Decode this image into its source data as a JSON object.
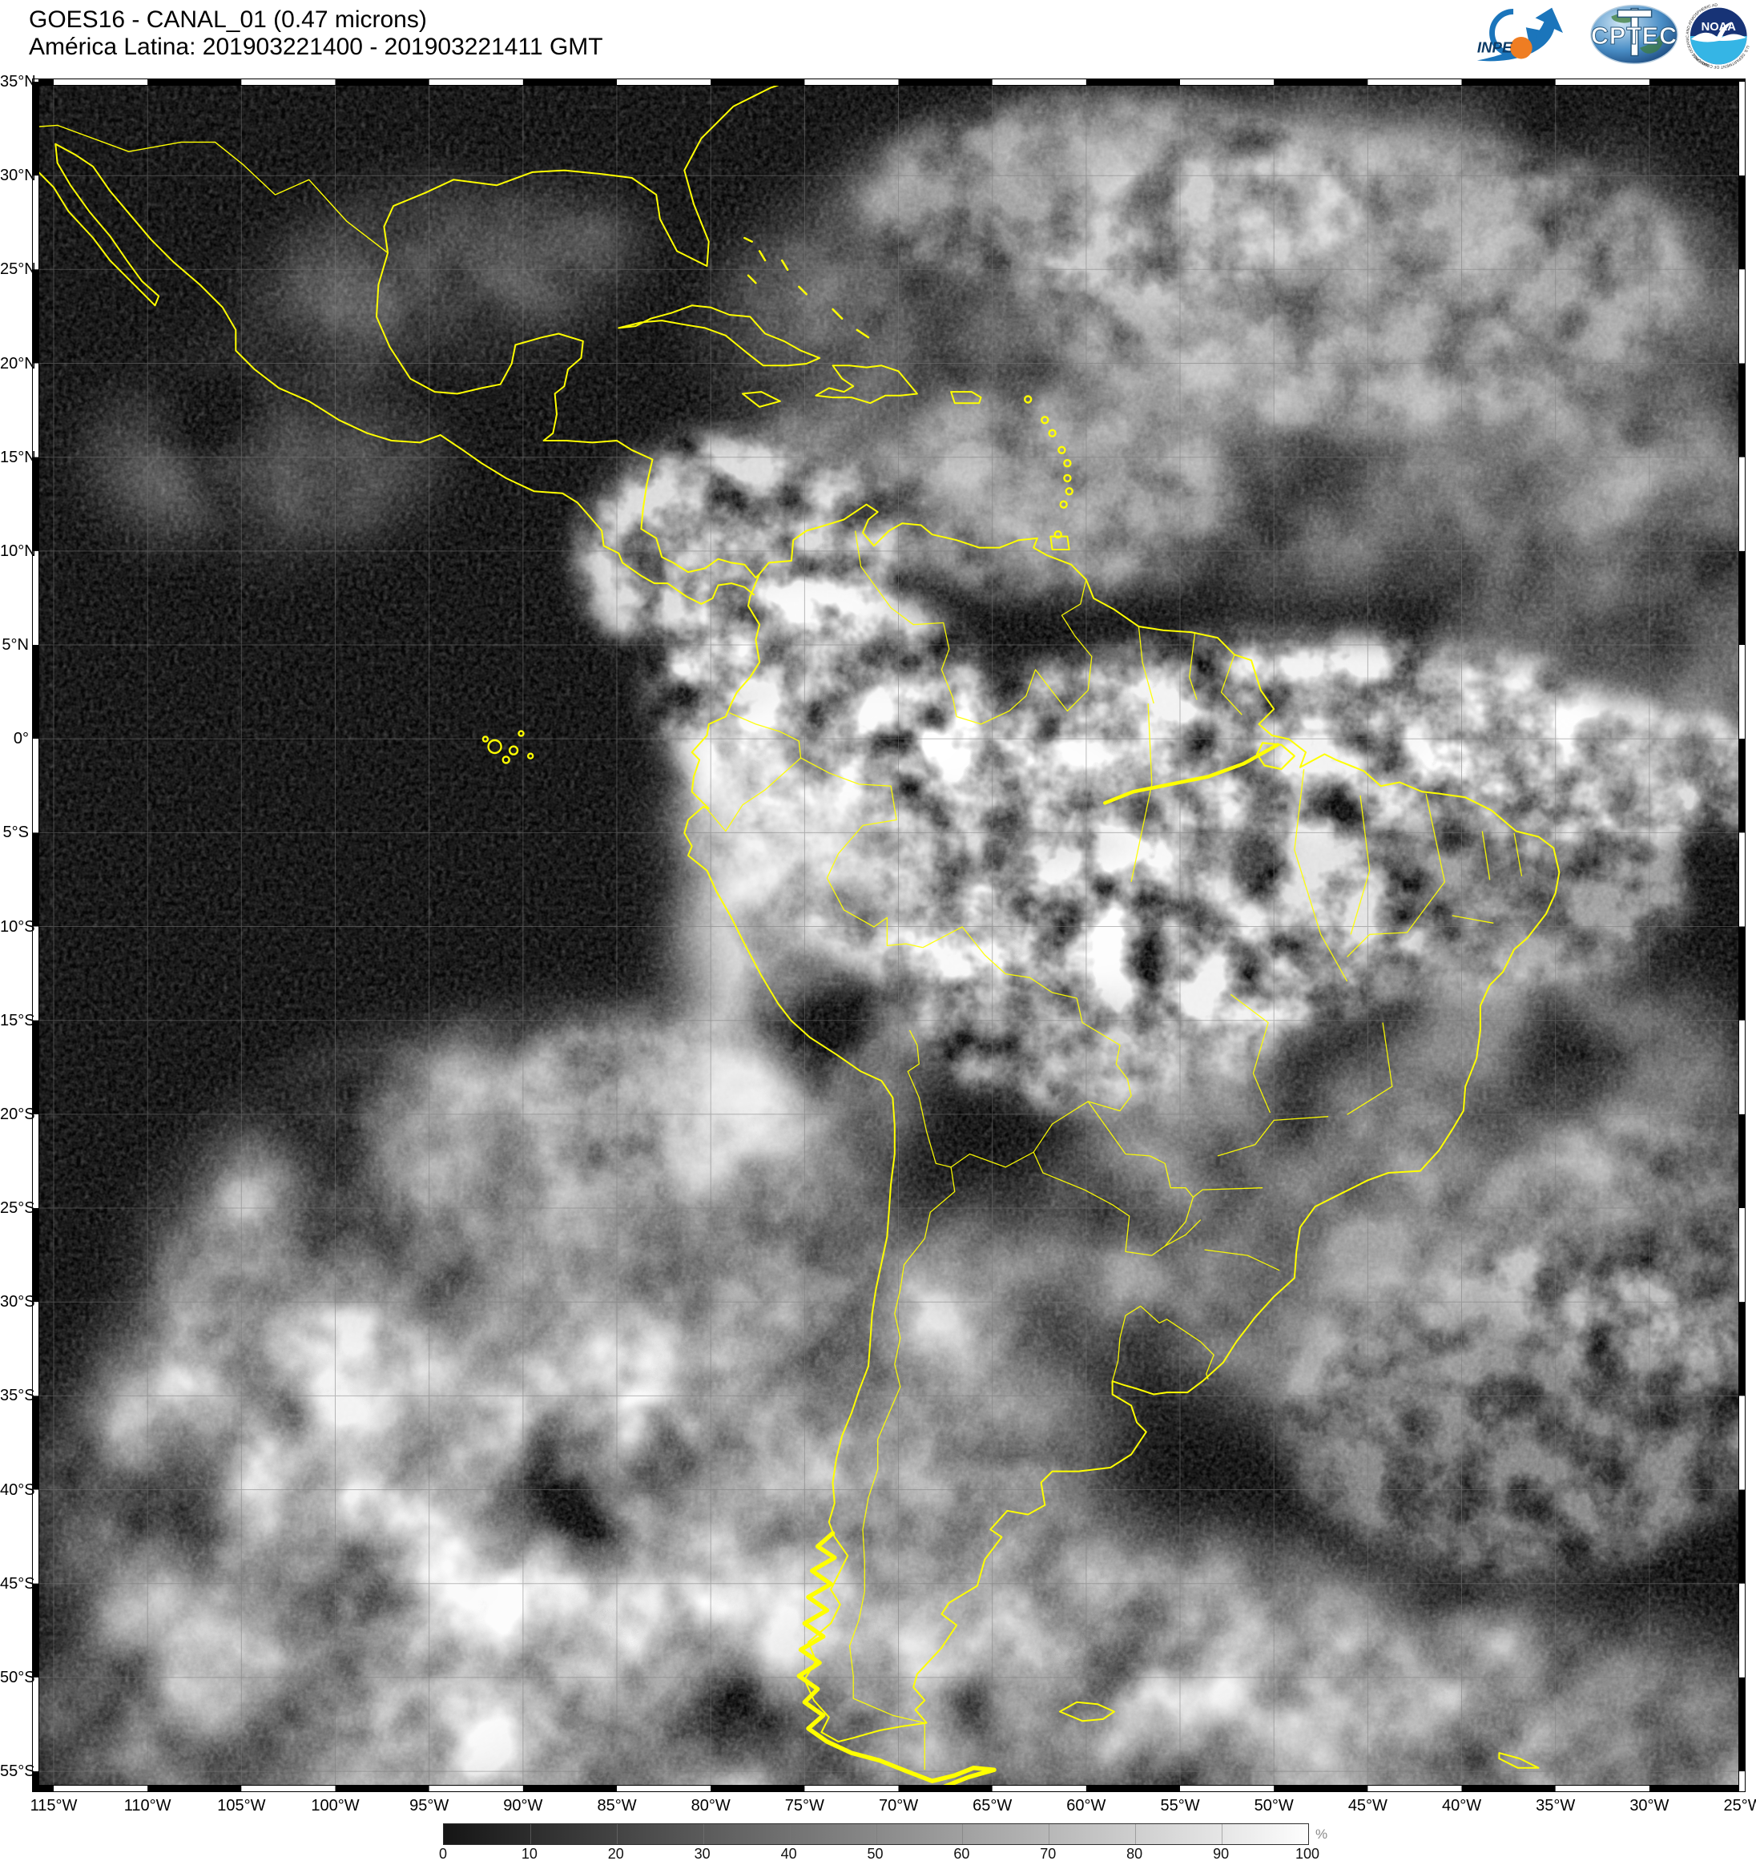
{
  "header": {
    "title": "GOES16 - CANAL_01 (0.47 microns)",
    "subtitle": "América Latina: 201903221400 - 201903221411 GMT"
  },
  "logos": {
    "inpe_label": "INPE",
    "cptec_label": "CPTEC",
    "noaa_label": "NOAA",
    "noaa_ring_top": "NATIONAL OCEANIC AND ATMOSPHERIC ADMINISTRATION",
    "noaa_ring_bottom": "U.S. DEPARTMENT OF COMMERCE"
  },
  "map": {
    "lat_labels": [
      "35°N",
      "30°N",
      "25°N",
      "20°N",
      "15°N",
      "10°N",
      "5°N",
      "0°",
      "5°S",
      "10°S",
      "15°S",
      "20°S",
      "25°S",
      "30°S",
      "35°S",
      "40°S",
      "45°S",
      "50°S",
      "55°S"
    ],
    "lon_labels": [
      "115°W",
      "110°W",
      "105°W",
      "100°W",
      "95°W",
      "90°W",
      "85°W",
      "80°W",
      "75°W",
      "70°W",
      "65°W",
      "60°W",
      "55°W",
      "50°W",
      "45°W",
      "40°W",
      "35°W",
      "30°W",
      "25°W"
    ],
    "grid_interval_deg": 5,
    "overlay_color": "#ffff00"
  },
  "colorbar": {
    "tick_labels": [
      "0",
      "10",
      "20",
      "30",
      "40",
      "50",
      "60",
      "70",
      "80",
      "90",
      "100"
    ],
    "unit": "%",
    "min_color": "#151515",
    "max_color": "#fdfdfd"
  }
}
